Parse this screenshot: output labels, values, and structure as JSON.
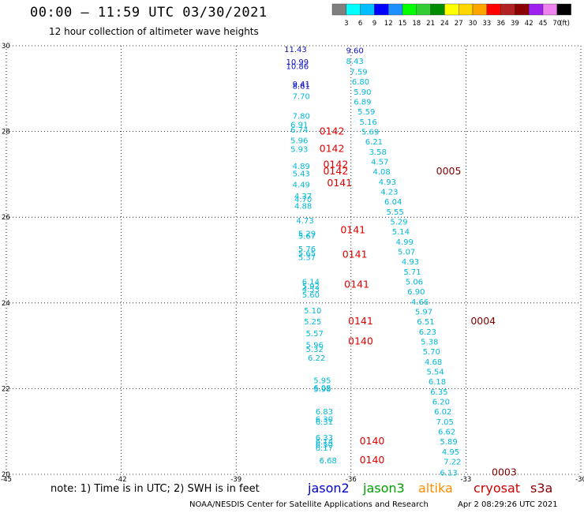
{
  "header": {
    "title": "00:00 – 11:59 UTC 03/30/2021",
    "subtitle": "12 hour collection of altimeter wave heights"
  },
  "colorbar": {
    "labels": [
      "3",
      "6",
      "9",
      "12",
      "15",
      "18",
      "21",
      "24",
      "27",
      "30",
      "33",
      "36",
      "39",
      "42",
      "45",
      "70",
      "(ft)"
    ],
    "colors": [
      "#7f7f7f",
      "#00ffff",
      "#00bfff",
      "#0000ff",
      "#1e90ff",
      "#00ff00",
      "#32cd32",
      "#008b00",
      "#ffff00",
      "#ffd700",
      "#ffa500",
      "#ff0000",
      "#b22222",
      "#8b0000",
      "#a020f0",
      "#ee82ee",
      "#000000"
    ]
  },
  "footer": {
    "note": "note:  1) Time is in UTC;  2) SWH is in feet",
    "credit": "NOAA/NESDIS Center for Satellite Applications and Research",
    "timestamp": "Apr  2 08:29:26 UTC 2021"
  },
  "satellites": [
    {
      "name": "jason2",
      "color": "#0000cc"
    },
    {
      "name": "jason3",
      "color": "#00a000"
    },
    {
      "name": "altika",
      "color": "#ff8c00"
    },
    {
      "name": "cryosat",
      "color": "#cc0000"
    },
    {
      "name": "s3a",
      "color": "#8b0000"
    }
  ],
  "chart_data": {
    "type": "scatter",
    "title": "00:00 – 11:59 UTC 03/30/2021",
    "xlim": [
      -45,
      -30
    ],
    "ylim": [
      20,
      30
    ],
    "x_ticks": [
      "-45",
      "-42",
      "-39",
      "-36",
      "-33",
      "-30"
    ],
    "y_ticks": [
      "20",
      "22",
      "24",
      "26",
      "28",
      "30"
    ],
    "grid": true,
    "series": [
      {
        "name": "jason2",
        "color": "#1010c8",
        "points": [
          {
            "x": -37.45,
            "y": 29.93,
            "label": "11.43"
          },
          {
            "x": -37.4,
            "y": 29.63,
            "label": "10.99"
          },
          {
            "x": -37.4,
            "y": 29.53,
            "label": "10.86"
          },
          {
            "x": -37.3,
            "y": 29.12,
            "label": "9.41"
          },
          {
            "x": -37.3,
            "y": 29.07,
            "label": "8.61"
          },
          {
            "x": -35.9,
            "y": 29.9,
            "label": "9.60"
          }
        ]
      },
      {
        "name": "jason3",
        "color": "#00b8d8",
        "points": [
          {
            "x": -35.9,
            "y": 29.65,
            "label": "8.43"
          },
          {
            "x": -35.8,
            "y": 29.4,
            "label": "7.59"
          },
          {
            "x": -35.75,
            "y": 29.17,
            "label": "6.80"
          },
          {
            "x": -35.7,
            "y": 28.93,
            "label": "5.90"
          },
          {
            "x": -35.7,
            "y": 28.7,
            "label": "6.89"
          },
          {
            "x": -35.6,
            "y": 28.47,
            "label": "5.59"
          },
          {
            "x": -35.55,
            "y": 28.23,
            "label": "5.16"
          },
          {
            "x": -35.5,
            "y": 28.0,
            "label": "5.69"
          },
          {
            "x": -35.4,
            "y": 27.77,
            "label": "6.21"
          },
          {
            "x": -35.3,
            "y": 27.53,
            "label": "3.58"
          },
          {
            "x": -35.25,
            "y": 27.3,
            "label": "4.57"
          },
          {
            "x": -35.2,
            "y": 27.07,
            "label": "4.08"
          },
          {
            "x": -35.05,
            "y": 26.83,
            "label": "4.93"
          },
          {
            "x": -35.0,
            "y": 26.6,
            "label": "4.23"
          },
          {
            "x": -34.9,
            "y": 26.37,
            "label": "6.04"
          },
          {
            "x": -34.85,
            "y": 26.13,
            "label": "5.55"
          },
          {
            "x": -34.75,
            "y": 25.9,
            "label": "5.29"
          },
          {
            "x": -34.7,
            "y": 25.67,
            "label": "5.14"
          },
          {
            "x": -34.6,
            "y": 25.43,
            "label": "4.99"
          },
          {
            "x": -34.55,
            "y": 25.2,
            "label": "5.07"
          },
          {
            "x": -34.45,
            "y": 24.97,
            "label": "4.93"
          },
          {
            "x": -34.4,
            "y": 24.73,
            "label": "5.71"
          },
          {
            "x": -34.35,
            "y": 24.5,
            "label": "5.06"
          },
          {
            "x": -34.3,
            "y": 24.27,
            "label": "6.90"
          },
          {
            "x": -34.2,
            "y": 24.03,
            "label": "4.66"
          },
          {
            "x": -34.1,
            "y": 23.8,
            "label": "5.97"
          },
          {
            "x": -34.05,
            "y": 23.57,
            "label": "6.51"
          },
          {
            "x": -34.0,
            "y": 23.33,
            "label": "6.23"
          },
          {
            "x": -33.95,
            "y": 23.1,
            "label": "5.38"
          },
          {
            "x": -33.9,
            "y": 22.87,
            "label": "5.70"
          },
          {
            "x": -33.85,
            "y": 22.63,
            "label": "4.68"
          },
          {
            "x": -33.8,
            "y": 22.4,
            "label": "5.54"
          },
          {
            "x": -33.75,
            "y": 22.17,
            "label": "6.18"
          },
          {
            "x": -33.7,
            "y": 21.93,
            "label": "6.35"
          },
          {
            "x": -33.65,
            "y": 21.7,
            "label": "6.20"
          },
          {
            "x": -33.6,
            "y": 21.47,
            "label": "6.02"
          },
          {
            "x": -33.55,
            "y": 21.23,
            "label": "7.05"
          },
          {
            "x": -33.5,
            "y": 21.0,
            "label": "6.62"
          },
          {
            "x": -33.45,
            "y": 20.77,
            "label": "5.89"
          },
          {
            "x": -33.4,
            "y": 20.53,
            "label": "4.95"
          },
          {
            "x": -33.35,
            "y": 20.3,
            "label": "7.22"
          },
          {
            "x": -33.45,
            "y": 20.05,
            "label": "6.13"
          },
          {
            "x": -37.3,
            "y": 28.83,
            "label": "7.70"
          },
          {
            "x": -37.3,
            "y": 28.37,
            "label": "7.80"
          },
          {
            "x": -37.35,
            "y": 28.17,
            "label": "6.91"
          },
          {
            "x": -37.35,
            "y": 28.05,
            "label": "6.74"
          },
          {
            "x": -37.35,
            "y": 27.8,
            "label": "5.96"
          },
          {
            "x": -37.35,
            "y": 27.6,
            "label": "5.93"
          },
          {
            "x": -37.3,
            "y": 27.2,
            "label": "4.89"
          },
          {
            "x": -37.3,
            "y": 27.03,
            "label": "5.43"
          },
          {
            "x": -37.3,
            "y": 26.77,
            "label": "4.49"
          },
          {
            "x": -37.25,
            "y": 26.5,
            "label": "4.37"
          },
          {
            "x": -37.25,
            "y": 26.43,
            "label": "4.70"
          },
          {
            "x": -37.25,
            "y": 26.27,
            "label": "4.88"
          },
          {
            "x": -37.2,
            "y": 25.93,
            "label": "4.73"
          },
          {
            "x": -37.15,
            "y": 25.63,
            "label": "5.29"
          },
          {
            "x": -37.15,
            "y": 25.57,
            "label": "5.67"
          },
          {
            "x": -37.15,
            "y": 25.27,
            "label": "5.76"
          },
          {
            "x": -37.15,
            "y": 25.17,
            "label": "5.65"
          },
          {
            "x": -37.15,
            "y": 25.07,
            "label": "5.37"
          },
          {
            "x": -37.05,
            "y": 24.5,
            "label": "6.14"
          },
          {
            "x": -37.05,
            "y": 24.4,
            "label": "5.92"
          },
          {
            "x": -37.05,
            "y": 24.33,
            "label": "4.53"
          },
          {
            "x": -37.05,
            "y": 24.2,
            "label": "5.60"
          },
          {
            "x": -37.0,
            "y": 23.83,
            "label": "5.10"
          },
          {
            "x": -37.0,
            "y": 23.57,
            "label": "5.25"
          },
          {
            "x": -36.95,
            "y": 23.3,
            "label": "5.57"
          },
          {
            "x": -36.95,
            "y": 23.03,
            "label": "5.96"
          },
          {
            "x": -36.95,
            "y": 22.93,
            "label": "5.32"
          },
          {
            "x": -36.9,
            "y": 22.73,
            "label": "6.22"
          },
          {
            "x": -36.75,
            "y": 22.2,
            "label": "5.95"
          },
          {
            "x": -36.75,
            "y": 22.03,
            "label": "6.08"
          },
          {
            "x": -36.75,
            "y": 22.0,
            "label": "5.90"
          },
          {
            "x": -36.7,
            "y": 21.47,
            "label": "6.83"
          },
          {
            "x": -36.7,
            "y": 21.3,
            "label": "6.30"
          },
          {
            "x": -36.7,
            "y": 21.23,
            "label": "6.31"
          },
          {
            "x": -36.7,
            "y": 20.87,
            "label": "6.33"
          },
          {
            "x": -36.7,
            "y": 20.77,
            "label": "6.14"
          },
          {
            "x": -36.7,
            "y": 20.7,
            "label": "6.50"
          },
          {
            "x": -36.7,
            "y": 20.63,
            "label": "6.17"
          },
          {
            "x": -36.6,
            "y": 20.33,
            "label": "6.68"
          }
        ]
      },
      {
        "name": "cryosat",
        "color": "#e00000",
        "points": [
          {
            "x": -36.5,
            "y": 28.0,
            "label": "0142"
          },
          {
            "x": -36.5,
            "y": 27.6,
            "label": "0142"
          },
          {
            "x": -36.4,
            "y": 27.23,
            "label": "0142"
          },
          {
            "x": -36.4,
            "y": 27.07,
            "label": "0142"
          },
          {
            "x": -36.3,
            "y": 26.8,
            "label": "0141"
          },
          {
            "x": -35.95,
            "y": 25.7,
            "label": "0141"
          },
          {
            "x": -35.9,
            "y": 25.13,
            "label": "0141"
          },
          {
            "x": -35.85,
            "y": 24.43,
            "label": "0141"
          },
          {
            "x": -35.75,
            "y": 23.57,
            "label": "0141"
          },
          {
            "x": -35.75,
            "y": 23.1,
            "label": "0140"
          },
          {
            "x": -35.45,
            "y": 20.77,
            "label": "0140"
          },
          {
            "x": -35.45,
            "y": 20.33,
            "label": "0140"
          }
        ]
      },
      {
        "name": "s3a",
        "color": "#800000",
        "points": [
          {
            "x": -33.45,
            "y": 27.07,
            "label": "0005"
          },
          {
            "x": -32.55,
            "y": 23.57,
            "label": "0004"
          },
          {
            "x": -32.0,
            "y": 20.05,
            "label": "0003"
          }
        ]
      }
    ]
  }
}
